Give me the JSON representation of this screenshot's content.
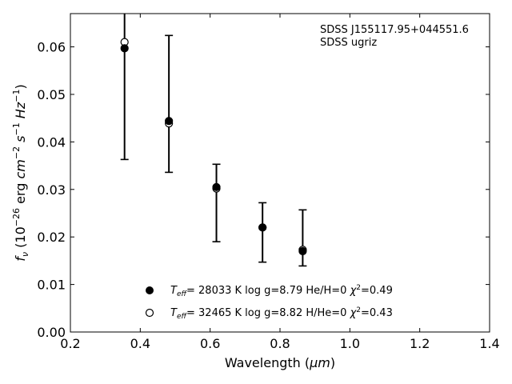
{
  "chart_data": {
    "type": "scatter",
    "xlabel_main": "Wavelength (",
    "xlabel_unit": "μm",
    "xlabel_close": ")",
    "ylabel": {
      "f": "f",
      "nu": "ν",
      "open": " (10",
      "exp1": "−26",
      "erg": " erg ",
      "cm": "cm",
      "exp2": "−2",
      "s": " s",
      "exp3": "−1",
      "hz": " Hz",
      "exp4": "−1",
      "close": ")"
    },
    "xlim": [
      0.2,
      1.4
    ],
    "ylim": [
      0.0,
      0.067
    ],
    "x_ticks": [
      0.2,
      0.4,
      0.6,
      0.8,
      1.0,
      1.2,
      1.4
    ],
    "x_tick_labels": [
      "0.2",
      "0.4",
      "0.6",
      "0.8",
      "1.0",
      "1.2",
      "1.4"
    ],
    "y_ticks": [
      0.0,
      0.01,
      0.02,
      0.03,
      0.04,
      0.05,
      0.06
    ],
    "y_tick_labels": [
      "0.00",
      "0.01",
      "0.02",
      "0.03",
      "0.04",
      "0.05",
      "0.06"
    ],
    "annotation": [
      "SDSS J155117.95+044551.6",
      "SDSS ugriz"
    ],
    "observed": {
      "x": [
        0.355,
        0.482,
        0.618,
        0.75,
        0.865
      ],
      "y_low": [
        0.0363,
        0.0336,
        0.019,
        0.0147,
        0.0139
      ],
      "y_high": [
        0.0675,
        0.0624,
        0.0353,
        0.0272,
        0.0257
      ]
    },
    "series": [
      {
        "marker": "filled",
        "x": [
          0.355,
          0.482,
          0.618,
          0.75,
          0.865
        ],
        "values": [
          0.0597,
          0.0444,
          0.0305,
          0.022,
          0.017
        ],
        "legend": {
          "T": "T",
          "sub": "eff",
          "text": "= 28033 K  log g=8.79  He/H=0  ",
          "chi": "χ",
          "chi_exp": "2",
          "chi_val": "=0.49"
        }
      },
      {
        "marker": "open",
        "x": [
          0.355,
          0.482,
          0.618,
          0.75,
          0.865
        ],
        "values": [
          0.061,
          0.0439,
          0.0302,
          0.022,
          0.0173
        ],
        "legend": {
          "T": "T",
          "sub": "eff",
          "text": "= 32465 K  log g=8.82  H/He=0  ",
          "chi": "χ",
          "chi_exp": "2",
          "chi_val": "=0.43"
        }
      }
    ],
    "grid": false,
    "legend_position": "lower-center"
  }
}
